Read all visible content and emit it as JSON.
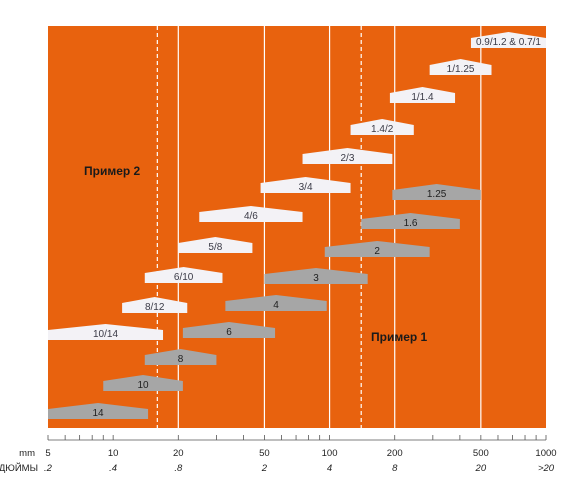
{
  "colors": {
    "background": "#e8620e",
    "white_bar": "#f3f2f6",
    "white_bar_text": "#3a3a46",
    "grey_bar": "#a6a6a6",
    "grey_bar_text": "#1f1f1f",
    "annotation": "#1a1a1a"
  },
  "chart_data": {
    "type": "bar",
    "xscale": "log",
    "xlim": [
      5,
      1000
    ],
    "x_ticks_mm": [
      "5",
      "10",
      "20",
      "50",
      "100",
      "200",
      "500",
      "1000"
    ],
    "x_ticks_inch": [
      ".2",
      ".4",
      ".8",
      "2",
      "4",
      "8",
      "20",
      ">20"
    ],
    "x_unit_mm": "mm",
    "x_unit_inch": "ДЮЙМЫ",
    "solid_vlines": [
      20,
      50,
      100,
      200,
      500
    ],
    "dashed_vlines": [
      16,
      140
    ],
    "annotations": {
      "example1": "Пример 1",
      "example2": "Пример 2"
    },
    "series": [
      {
        "group": "white",
        "bars": [
          {
            "label": "0.9/1.2 & 0.7/1",
            "from": 450,
            "to": 1000
          },
          {
            "label": "1/1.25",
            "from": 290,
            "to": 560
          },
          {
            "label": "1/1.4",
            "from": 190,
            "to": 380
          },
          {
            "label": "1.4/2",
            "from": 125,
            "to": 245
          },
          {
            "label": "2/3",
            "from": 75,
            "to": 195
          },
          {
            "label": "3/4",
            "from": 48,
            "to": 125
          },
          {
            "label": "4/6",
            "from": 25,
            "to": 75
          },
          {
            "label": "5/8",
            "from": 20,
            "to": 44
          },
          {
            "label": "6/10",
            "from": 14,
            "to": 32
          },
          {
            "label": "8/12",
            "from": 11,
            "to": 22
          },
          {
            "label": "10/14",
            "from": 5,
            "to": 17
          }
        ]
      },
      {
        "group": "grey",
        "bars": [
          {
            "label": "1.25",
            "from": 195,
            "to": 500
          },
          {
            "label": "1.6",
            "from": 140,
            "to": 400
          },
          {
            "label": "2",
            "from": 95,
            "to": 290
          },
          {
            "label": "3",
            "from": 50,
            "to": 150
          },
          {
            "label": "4",
            "from": 33,
            "to": 97
          },
          {
            "label": "6",
            "from": 21,
            "to": 56
          },
          {
            "label": "8",
            "from": 14,
            "to": 30
          },
          {
            "label": "10",
            "from": 9,
            "to": 21
          },
          {
            "label": "14",
            "from": 5,
            "to": 14.5
          }
        ]
      }
    ]
  }
}
